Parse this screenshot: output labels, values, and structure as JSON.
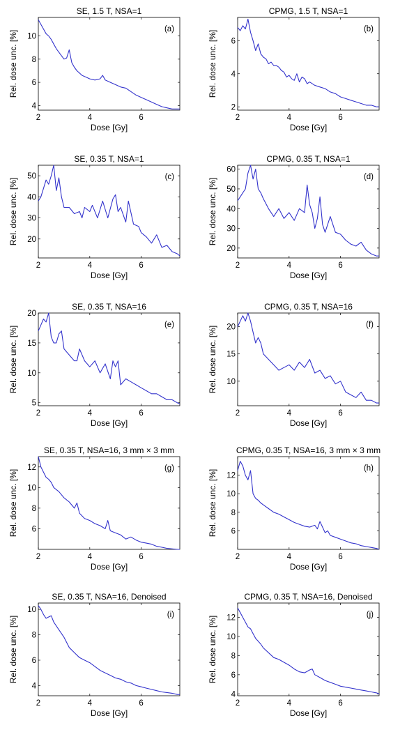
{
  "figure": {
    "series_color": "#3333cc"
  },
  "chart_data": [
    {
      "type": "line",
      "title": "SE, 1.5 T, NSA=1",
      "panel_label": "(a)",
      "xlabel": "Dose [Gy]",
      "ylabel": "Rel. dose unc. [%]",
      "xlim": [
        2,
        7.5
      ],
      "ylim": [
        3.6,
        11.6
      ],
      "xticks": [
        2,
        4,
        6
      ],
      "xtick_labels": [
        "2",
        "4",
        "6"
      ],
      "yticks": [
        4,
        6,
        8,
        10
      ],
      "ytick_labels": [
        "4",
        "6",
        "8",
        "10"
      ],
      "series": [
        {
          "x": [
            2.0,
            2.1,
            2.2,
            2.3,
            2.4,
            2.5,
            2.6,
            2.7,
            2.8,
            2.9,
            3.0,
            3.1,
            3.2,
            3.3,
            3.4,
            3.5,
            3.6,
            3.7,
            3.8,
            3.9,
            4.0,
            4.2,
            4.4,
            4.5,
            4.6,
            4.8,
            5.0,
            5.2,
            5.4,
            5.6,
            5.8,
            6.0,
            6.2,
            6.4,
            6.6,
            6.8,
            7.0,
            7.2,
            7.5
          ],
          "y": [
            11.4,
            11.0,
            10.6,
            10.2,
            10.0,
            9.7,
            9.3,
            8.9,
            8.6,
            8.3,
            8.0,
            8.1,
            8.8,
            7.7,
            7.3,
            7.0,
            6.8,
            6.6,
            6.5,
            6.4,
            6.3,
            6.2,
            6.3,
            6.6,
            6.2,
            6.0,
            5.8,
            5.6,
            5.5,
            5.2,
            4.9,
            4.7,
            4.5,
            4.3,
            4.1,
            3.9,
            3.8,
            3.7,
            3.7
          ]
        }
      ]
    },
    {
      "type": "line",
      "title": "CPMG, 1.5 T, NSA=1",
      "panel_label": "(b)",
      "xlabel": "Dose [Gy]",
      "ylabel": "Rel. dose unc. [%]",
      "xlim": [
        2,
        7.5
      ],
      "ylim": [
        1.8,
        7.4
      ],
      "xticks": [
        2,
        4,
        6
      ],
      "xtick_labels": [
        "2",
        "4",
        "6"
      ],
      "yticks": [
        2,
        4,
        6
      ],
      "ytick_labels": [
        "2",
        "4",
        "6"
      ],
      "series": [
        {
          "x": [
            2.0,
            2.1,
            2.2,
            2.3,
            2.4,
            2.5,
            2.6,
            2.7,
            2.8,
            2.9,
            3.0,
            3.1,
            3.2,
            3.3,
            3.4,
            3.5,
            3.6,
            3.7,
            3.8,
            3.9,
            4.0,
            4.1,
            4.2,
            4.3,
            4.4,
            4.5,
            4.6,
            4.7,
            4.8,
            5.0,
            5.2,
            5.4,
            5.6,
            5.8,
            6.0,
            6.2,
            6.4,
            6.6,
            6.8,
            7.0,
            7.2,
            7.4,
            7.5
          ],
          "y": [
            6.8,
            6.6,
            6.9,
            6.7,
            7.3,
            6.5,
            6.0,
            5.4,
            5.8,
            5.2,
            5.0,
            4.9,
            4.6,
            4.7,
            4.5,
            4.5,
            4.4,
            4.2,
            4.1,
            3.8,
            3.9,
            3.7,
            3.6,
            4.0,
            3.5,
            3.8,
            3.7,
            3.4,
            3.5,
            3.3,
            3.2,
            3.1,
            2.9,
            2.8,
            2.6,
            2.5,
            2.4,
            2.3,
            2.2,
            2.1,
            2.1,
            2.0,
            2.0
          ]
        }
      ]
    },
    {
      "type": "line",
      "title": "SE, 0.35 T, NSA=1",
      "panel_label": "(c)",
      "xlabel": "Dose [Gy]",
      "ylabel": "Rel. dose unc. [%]",
      "xlim": [
        2,
        7.5
      ],
      "ylim": [
        11,
        55
      ],
      "xticks": [
        2,
        4,
        6
      ],
      "xtick_labels": [
        "2",
        "4",
        "6"
      ],
      "yticks": [
        20,
        30,
        40,
        50
      ],
      "ytick_labels": [
        "20",
        "30",
        "40",
        "50"
      ],
      "series": [
        {
          "x": [
            2.0,
            2.1,
            2.2,
            2.3,
            2.4,
            2.5,
            2.6,
            2.7,
            2.8,
            2.9,
            3.0,
            3.2,
            3.4,
            3.6,
            3.7,
            3.8,
            4.0,
            4.1,
            4.3,
            4.5,
            4.7,
            4.9,
            5.0,
            5.1,
            5.2,
            5.4,
            5.5,
            5.7,
            5.9,
            6.0,
            6.2,
            6.4,
            6.6,
            6.8,
            7.0,
            7.2,
            7.4,
            7.5
          ],
          "y": [
            38,
            40,
            44,
            48,
            46,
            50,
            55,
            43,
            49,
            40,
            35,
            35,
            32,
            33,
            30,
            35,
            33,
            36,
            30,
            38,
            30,
            39,
            41,
            33,
            35,
            28,
            38,
            27,
            26,
            23,
            21,
            18,
            22,
            16,
            17,
            14,
            13,
            12
          ]
        }
      ]
    },
    {
      "type": "line",
      "title": "CPMG, 0.35 T, NSA=1",
      "panel_label": "(d)",
      "xlabel": "Dose [Gy]",
      "ylabel": "Rel. dose unc. [%]",
      "xlim": [
        2,
        7.5
      ],
      "ylim": [
        15,
        62
      ],
      "xticks": [
        2,
        4,
        6
      ],
      "xtick_labels": [
        "2",
        "4",
        "6"
      ],
      "yticks": [
        20,
        30,
        40,
        50,
        60
      ],
      "ytick_labels": [
        "20",
        "30",
        "40",
        "50",
        "60"
      ],
      "series": [
        {
          "x": [
            2.0,
            2.1,
            2.2,
            2.3,
            2.4,
            2.5,
            2.6,
            2.7,
            2.8,
            2.9,
            3.0,
            3.2,
            3.4,
            3.6,
            3.8,
            4.0,
            4.2,
            4.4,
            4.6,
            4.7,
            4.8,
            4.9,
            5.0,
            5.1,
            5.2,
            5.3,
            5.4,
            5.6,
            5.8,
            6.0,
            6.2,
            6.4,
            6.6,
            6.8,
            7.0,
            7.2,
            7.4,
            7.5
          ],
          "y": [
            44,
            46,
            48,
            50,
            58,
            62,
            55,
            60,
            50,
            48,
            45,
            40,
            36,
            40,
            35,
            38,
            34,
            40,
            38,
            52,
            42,
            38,
            30,
            35,
            46,
            32,
            28,
            36,
            28,
            27,
            24,
            22,
            21,
            23,
            19,
            17,
            16,
            16
          ]
        }
      ]
    },
    {
      "type": "line",
      "title": "SE, 0.35 T, NSA=16",
      "panel_label": "(e)",
      "xlabel": "Dose [Gy]",
      "ylabel": "Rel. dose unc. [%]",
      "xlim": [
        2,
        7.5
      ],
      "ylim": [
        4.5,
        20
      ],
      "xticks": [
        2,
        4,
        6
      ],
      "xtick_labels": [
        "2",
        "4",
        "6"
      ],
      "yticks": [
        5,
        10,
        15,
        20
      ],
      "ytick_labels": [
        "5",
        "10",
        "15",
        "20"
      ],
      "series": [
        {
          "x": [
            2.0,
            2.1,
            2.2,
            2.3,
            2.4,
            2.5,
            2.6,
            2.7,
            2.8,
            2.9,
            3.0,
            3.2,
            3.4,
            3.5,
            3.6,
            3.8,
            4.0,
            4.2,
            4.4,
            4.6,
            4.8,
            4.9,
            5.0,
            5.1,
            5.2,
            5.4,
            5.6,
            5.8,
            6.0,
            6.2,
            6.4,
            6.6,
            6.8,
            7.0,
            7.2,
            7.4,
            7.5
          ],
          "y": [
            17,
            18,
            19,
            18.5,
            20,
            16,
            15,
            15,
            16.5,
            17,
            14,
            13,
            12,
            12,
            14,
            12,
            11,
            12,
            10,
            11.5,
            9,
            12,
            11,
            12,
            8,
            9,
            8.5,
            8,
            7.5,
            7,
            6.5,
            6.5,
            6,
            5.5,
            5.5,
            5,
            4.8
          ]
        }
      ]
    },
    {
      "type": "line",
      "title": "CPMG, 0.35 T, NSA=16",
      "panel_label": "(f)",
      "xlabel": "Dose [Gy]",
      "ylabel": "Rel. dose unc. [%]",
      "xlim": [
        2,
        7.5
      ],
      "ylim": [
        5.5,
        22.5
      ],
      "xticks": [
        2,
        4,
        6
      ],
      "xtick_labels": [
        "2",
        "4",
        "6"
      ],
      "yticks": [
        10,
        15,
        20
      ],
      "ytick_labels": [
        "10",
        "15",
        "20"
      ],
      "series": [
        {
          "x": [
            2.0,
            2.1,
            2.2,
            2.3,
            2.4,
            2.5,
            2.6,
            2.7,
            2.8,
            2.9,
            3.0,
            3.2,
            3.4,
            3.6,
            3.8,
            4.0,
            4.2,
            4.4,
            4.6,
            4.8,
            5.0,
            5.2,
            5.4,
            5.6,
            5.8,
            6.0,
            6.2,
            6.4,
            6.6,
            6.8,
            7.0,
            7.2,
            7.4,
            7.5
          ],
          "y": [
            20,
            21,
            22,
            21,
            22.5,
            21,
            19,
            17,
            18,
            17,
            15,
            14,
            13,
            12,
            12.5,
            13,
            12,
            13.5,
            12.5,
            14,
            11.5,
            12,
            10.5,
            11,
            9.5,
            10,
            8,
            7.5,
            7,
            8,
            6.5,
            6.5,
            6,
            6
          ]
        }
      ]
    },
    {
      "type": "line",
      "title": "SE, 0.35 T, NSA=16, 3 mm × 3 mm",
      "panel_label": "(g)",
      "xlabel": "Dose [Gy]",
      "ylabel": "Rel. dose unc. [%]",
      "xlim": [
        2,
        7.5
      ],
      "ylim": [
        4,
        13
      ],
      "xticks": [
        2,
        4,
        6
      ],
      "xtick_labels": [
        "2",
        "4",
        "6"
      ],
      "yticks": [
        6,
        8,
        10,
        12
      ],
      "ytick_labels": [
        "6",
        "8",
        "10",
        "12"
      ],
      "series": [
        {
          "x": [
            2.0,
            2.1,
            2.2,
            2.3,
            2.4,
            2.5,
            2.6,
            2.7,
            2.8,
            2.9,
            3.0,
            3.2,
            3.4,
            3.5,
            3.6,
            3.8,
            4.0,
            4.2,
            4.4,
            4.6,
            4.7,
            4.8,
            5.0,
            5.2,
            5.4,
            5.6,
            5.8,
            6.0,
            6.2,
            6.4,
            6.6,
            6.8,
            7.0,
            7.2,
            7.4,
            7.5
          ],
          "y": [
            13,
            12,
            11.5,
            11,
            10.8,
            10.5,
            10.0,
            9.8,
            9.6,
            9.3,
            9.0,
            8.6,
            8.0,
            8.5,
            7.5,
            7.0,
            6.8,
            6.5,
            6.3,
            6.0,
            6.8,
            5.8,
            5.6,
            5.4,
            5.0,
            5.2,
            4.9,
            4.7,
            4.6,
            4.5,
            4.3,
            4.2,
            4.1,
            4.05,
            4.0,
            4.0
          ]
        }
      ]
    },
    {
      "type": "line",
      "title": "CPMG, 0.35 T, NSA=16, 3 mm × 3 mm",
      "panel_label": "(h)",
      "xlabel": "Dose [Gy]",
      "ylabel": "Rel. dose unc. [%]",
      "xlim": [
        2,
        7.5
      ],
      "ylim": [
        4,
        14
      ],
      "xticks": [
        2,
        4,
        6
      ],
      "xtick_labels": [
        "2",
        "4",
        "6"
      ],
      "yticks": [
        6,
        8,
        10,
        12
      ],
      "ytick_labels": [
        "6",
        "8",
        "10",
        "12"
      ],
      "series": [
        {
          "x": [
            2.0,
            2.1,
            2.2,
            2.3,
            2.4,
            2.5,
            2.6,
            2.7,
            2.8,
            2.9,
            3.0,
            3.2,
            3.4,
            3.6,
            3.8,
            4.0,
            4.2,
            4.4,
            4.6,
            4.8,
            5.0,
            5.1,
            5.2,
            5.4,
            5.5,
            5.6,
            5.8,
            6.0,
            6.2,
            6.4,
            6.6,
            6.8,
            7.0,
            7.2,
            7.4,
            7.5
          ],
          "y": [
            12.5,
            13.5,
            13.0,
            12.0,
            11.5,
            12.5,
            10.0,
            9.5,
            9.3,
            9.0,
            8.8,
            8.4,
            8.0,
            7.8,
            7.5,
            7.2,
            6.9,
            6.7,
            6.5,
            6.4,
            6.6,
            6.2,
            7.0,
            5.8,
            6.0,
            5.5,
            5.3,
            5.1,
            4.9,
            4.7,
            4.6,
            4.4,
            4.3,
            4.2,
            4.1,
            4.0
          ]
        }
      ]
    },
    {
      "type": "line",
      "title": "SE, 0.35 T, NSA=16, Denoised",
      "panel_label": "(i)",
      "xlabel": "Dose [Gy]",
      "ylabel": "Rel. dose unc. [%]",
      "xlim": [
        2,
        7.5
      ],
      "ylim": [
        3.2,
        10.5
      ],
      "xticks": [
        2,
        4,
        6
      ],
      "xtick_labels": [
        "2",
        "4",
        "6"
      ],
      "yticks": [
        4,
        6,
        8,
        10
      ],
      "ytick_labels": [
        "4",
        "6",
        "8",
        "10"
      ],
      "series": [
        {
          "x": [
            2.0,
            2.1,
            2.2,
            2.3,
            2.4,
            2.5,
            2.6,
            2.7,
            2.8,
            2.9,
            3.0,
            3.2,
            3.4,
            3.6,
            3.8,
            4.0,
            4.2,
            4.4,
            4.6,
            4.8,
            5.0,
            5.2,
            5.4,
            5.6,
            5.8,
            6.0,
            6.2,
            6.4,
            6.6,
            6.8,
            7.0,
            7.2,
            7.4,
            7.5
          ],
          "y": [
            10.3,
            10.0,
            9.6,
            9.3,
            9.4,
            9.5,
            9.0,
            8.7,
            8.4,
            8.1,
            7.8,
            7.0,
            6.6,
            6.2,
            6.0,
            5.8,
            5.5,
            5.2,
            5.0,
            4.8,
            4.6,
            4.5,
            4.3,
            4.2,
            4.0,
            3.9,
            3.8,
            3.7,
            3.6,
            3.5,
            3.45,
            3.4,
            3.3,
            3.3
          ]
        }
      ]
    },
    {
      "type": "line",
      "title": "CPMG, 0.35 T, NSA=16, Denoised",
      "panel_label": "(j)",
      "xlabel": "Dose [Gy]",
      "ylabel": "Rel. dose unc. [%]",
      "xlim": [
        2,
        7.5
      ],
      "ylim": [
        3.8,
        13.5
      ],
      "xticks": [
        2,
        4,
        6
      ],
      "xtick_labels": [
        "2",
        "4",
        "6"
      ],
      "yticks": [
        4,
        6,
        8,
        10,
        12
      ],
      "ytick_labels": [
        "4",
        "6",
        "8",
        "10",
        "12"
      ],
      "series": [
        {
          "x": [
            2.0,
            2.1,
            2.2,
            2.3,
            2.4,
            2.5,
            2.6,
            2.7,
            2.8,
            2.9,
            3.0,
            3.2,
            3.4,
            3.6,
            3.8,
            4.0,
            4.2,
            4.4,
            4.6,
            4.8,
            4.9,
            5.0,
            5.2,
            5.4,
            5.6,
            5.8,
            6.0,
            6.2,
            6.4,
            6.6,
            6.8,
            7.0,
            7.2,
            7.4,
            7.5
          ],
          "y": [
            13.0,
            12.5,
            12.0,
            11.5,
            11.0,
            10.8,
            10.3,
            9.8,
            9.5,
            9.2,
            8.8,
            8.3,
            7.8,
            7.6,
            7.3,
            7.0,
            6.6,
            6.3,
            6.2,
            6.5,
            6.6,
            6.0,
            5.7,
            5.4,
            5.2,
            5.0,
            4.8,
            4.7,
            4.6,
            4.5,
            4.4,
            4.3,
            4.2,
            4.1,
            4.0
          ]
        }
      ]
    }
  ]
}
